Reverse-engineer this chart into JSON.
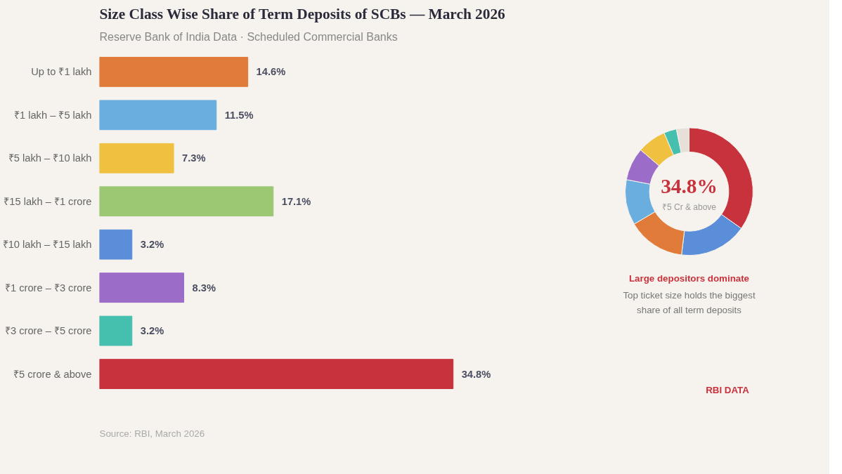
{
  "chart_data": [
    {
      "type": "bar",
      "title": "Size Class Wise Share of Term Deposits of SCBs — March 2026",
      "subtitle": "Reserve Bank of India Data · Scheduled Commercial Banks",
      "orientation": "horizontal",
      "categories": [
        "Up to ₹1 lakh",
        "₹1 lakh – ₹5 lakh",
        "₹5 lakh – ₹10 lakh",
        "₹15 lakh – ₹1 crore",
        "₹10 lakh – ₹15 lakh",
        "₹1 crore – ₹3 crore",
        "₹3 crore – ₹5 crore",
        "₹5 crore & above"
      ],
      "values": [
        14.6,
        11.5,
        7.3,
        17.1,
        3.2,
        8.3,
        3.2,
        34.8
      ],
      "colors": [
        "#e07b39",
        "#6aaee0",
        "#f0c040",
        "#9cc874",
        "#5b8ed8",
        "#9b6cc8",
        "#45bfae",
        "#c8323c"
      ],
      "value_labels": [
        "14.6%",
        "11.5%",
        "7.3%",
        "17.1%",
        "3.2%",
        "8.3%",
        "3.2%",
        "34.8%"
      ],
      "tick_labels": "y",
      "grid": false,
      "annotations": [
        "Source: RBI, March 2026"
      ]
    },
    {
      "type": "donut",
      "categories": [
        null,
        null,
        null,
        null,
        null,
        null,
        null,
        null
      ],
      "values": [
        34.8,
        17.1,
        14.6,
        11.5,
        8.3,
        7.3,
        3.2,
        3.2
      ],
      "colors": [
        "#c8323c",
        "#5b8ed8",
        "#e07b39",
        "#6aaee0",
        "#9b6cc8",
        "#f0c040",
        "#45bfae",
        "#e6e0d8"
      ],
      "annotations": [
        "34.8%",
        "₹5 Cr & above",
        "Large depositors dominate",
        "Top ticket size holds the biggest",
        "share of all term deposits",
        "RBI DATA"
      ]
    }
  ]
}
